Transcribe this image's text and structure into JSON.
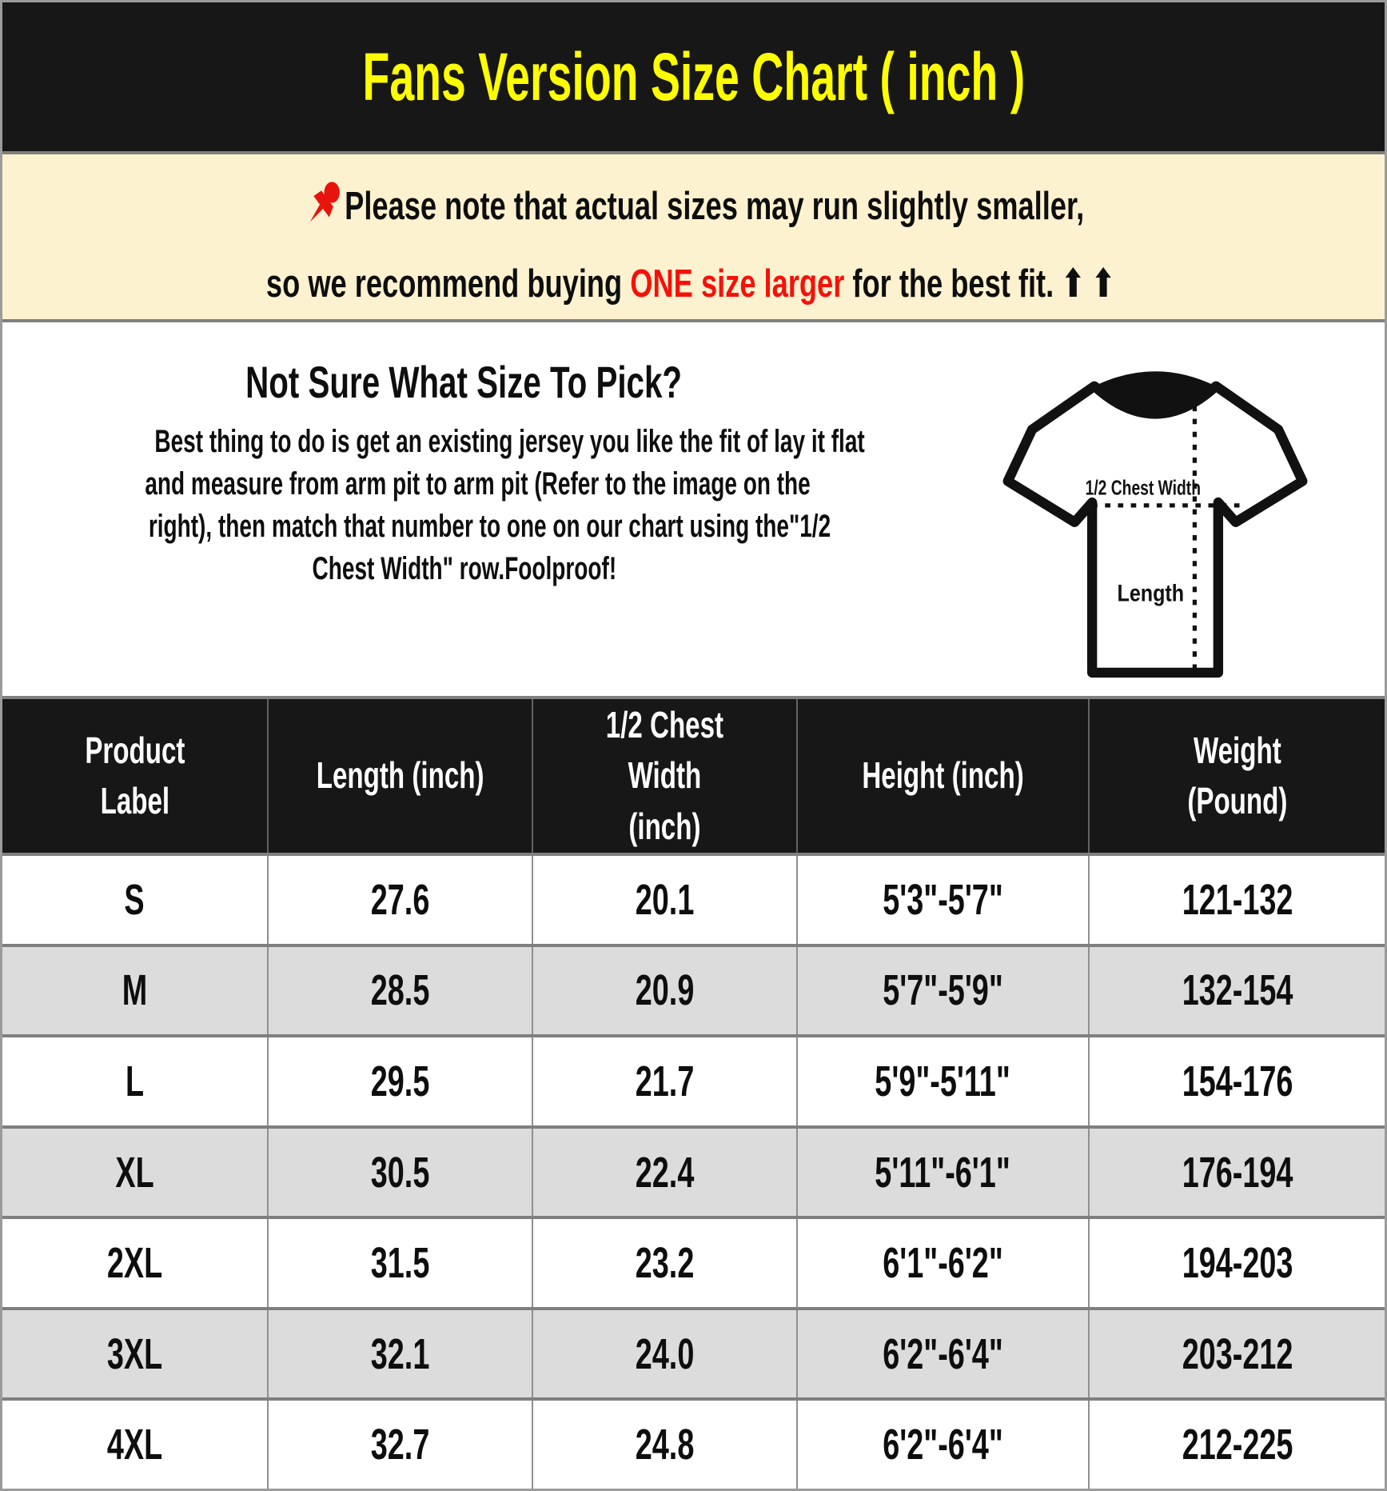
{
  "title": "Fans Version Size Chart ( inch )",
  "note": {
    "pushpin_icon": "red-pushpin",
    "line1": "Please note that actual sizes may run slightly smaller,",
    "line2_prefix": "so we recommend buying ",
    "line2_highlight": "ONE size larger",
    "line2_suffix": " for the best fit.",
    "arrows": "⬆⬆"
  },
  "sizing_help": {
    "heading": "Not Sure What Size To Pick?",
    "body_lines": [
      "Best thing to do is get an existing jersey you like the fit of lay it flat",
      "and measure from arm pit to arm pit (Refer to the image on the",
      "right), then match that number to one on our chart using the\"1/2",
      "Chest Width\" row.Foolproof!"
    ],
    "diagram": {
      "chest_label": "1/2 Chest Width",
      "length_label": "Length"
    }
  },
  "table": {
    "columns": [
      {
        "key": "product-label",
        "lines": [
          "Product",
          "Label"
        ]
      },
      {
        "key": "length",
        "lines": [
          "Length (inch)"
        ]
      },
      {
        "key": "chest-width",
        "lines": [
          "1/2 Chest Width",
          "(inch)"
        ]
      },
      {
        "key": "height",
        "lines": [
          "Height (inch)"
        ]
      },
      {
        "key": "weight",
        "lines": [
          "Weight",
          "(Pound)"
        ]
      }
    ],
    "rows": [
      {
        "label": "S",
        "length": "27.6",
        "chest": "20.1",
        "height": "5'3\"-5'7\"",
        "weight": "121-132"
      },
      {
        "label": "M",
        "length": "28.5",
        "chest": "20.9",
        "height": "5'7\"-5'9\"",
        "weight": "132-154"
      },
      {
        "label": "L",
        "length": "29.5",
        "chest": "21.7",
        "height": "5'9\"-5'11\"",
        "weight": "154-176"
      },
      {
        "label": "XL",
        "length": "30.5",
        "chest": "22.4",
        "height": "5'11\"-6'1\"",
        "weight": "176-194"
      },
      {
        "label": "2XL",
        "length": "31.5",
        "chest": "23.2",
        "height": "6'1\"-6'2\"",
        "weight": "194-203"
      },
      {
        "label": "3XL",
        "length": "32.1",
        "chest": "24.0",
        "height": "6'2\"-6'4\"",
        "weight": "203-212"
      },
      {
        "label": "4XL",
        "length": "32.7",
        "chest": "24.8",
        "height": "6'2\"-6'4\"",
        "weight": "212-225"
      }
    ]
  },
  "chart_data": {
    "type": "table",
    "title": "Fans Version Size Chart ( inch )",
    "columns": [
      "Product Label",
      "Length (inch)",
      "1/2 Chest Width (inch)",
      "Height (inch)",
      "Weight (Pound)"
    ],
    "rows": [
      [
        "S",
        "27.6",
        "20.1",
        "5'3\"-5'7\"",
        "121-132"
      ],
      [
        "M",
        "28.5",
        "20.9",
        "5'7\"-5'9\"",
        "132-154"
      ],
      [
        "L",
        "29.5",
        "21.7",
        "5'9\"-5'11\"",
        "154-176"
      ],
      [
        "XL",
        "30.5",
        "22.4",
        "5'11\"-6'1\"",
        "176-194"
      ],
      [
        "2XL",
        "31.5",
        "23.2",
        "6'1\"-6'2\"",
        "194-203"
      ],
      [
        "3XL",
        "32.1",
        "24.0",
        "6'2\"-6'4\"",
        "203-212"
      ],
      [
        "4XL",
        "32.7",
        "24.8",
        "6'2\"-6'4\"",
        "212-225"
      ]
    ]
  },
  "colors": {
    "title_text": "#fdfd00",
    "title_bg": "#171717",
    "note_bg": "#fcf2d0",
    "highlight_red": "#f5110a",
    "pushpin_red": "#e8130c",
    "table_header_bg": "#171717",
    "table_alt_row_bg": "#dcdcdc",
    "grid_line": "#7f7f7f"
  }
}
